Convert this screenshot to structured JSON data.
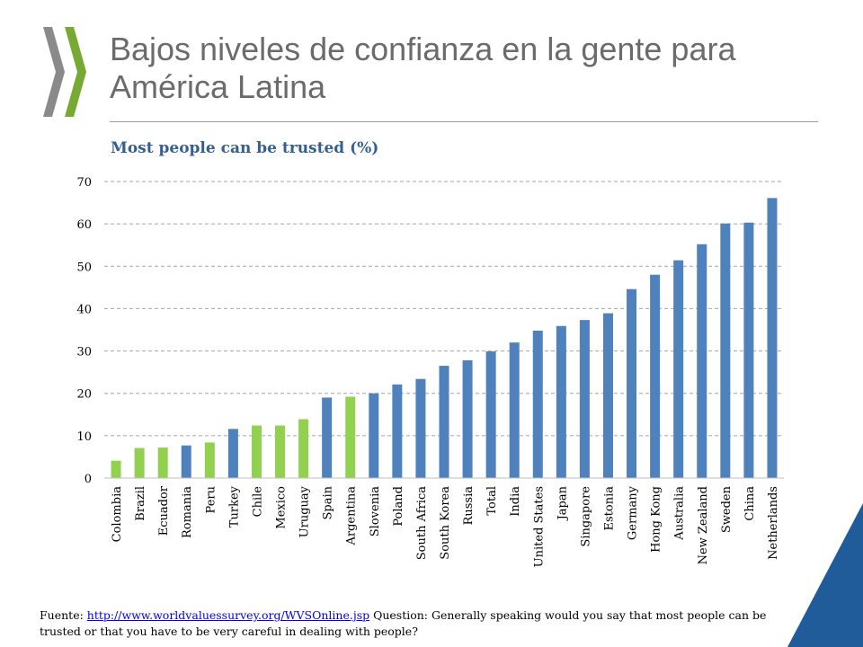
{
  "slide": {
    "title": "Bajos niveles de confianza en la gente para América Latina"
  },
  "colors": {
    "bar_default": "#4f81bd",
    "bar_latam": "#92d050",
    "title_text": "#6b6b6b",
    "chart_title": "#365f91",
    "corner": "#1f5c99",
    "logo": "#78aa33"
  },
  "chart_data": {
    "type": "bar",
    "title": "Most people can be trusted (%)",
    "xlabel": "",
    "ylabel": "",
    "ylim": [
      0,
      70
    ],
    "yticks": [
      0,
      10,
      20,
      30,
      40,
      50,
      60,
      70
    ],
    "grid": true,
    "legend": "none",
    "categories": [
      "Colombia",
      "Brazil",
      "Ecuador",
      "Romania",
      "Peru",
      "Turkey",
      "Chile",
      "Mexico",
      "Uruguay",
      "Spain",
      "Argentina",
      "Slovenia",
      "Poland",
      "South Africa",
      "South Korea",
      "Russia",
      "Total",
      "India",
      "United States",
      "Japan",
      "Singapore",
      "Estonia",
      "Germany",
      "Hong Kong",
      "Australia",
      "New Zealand",
      "Sweden",
      "China",
      "Netherlands"
    ],
    "values": [
      4.1,
      7.1,
      7.2,
      7.7,
      8.4,
      11.6,
      12.4,
      12.4,
      13.9,
      19.0,
      19.2,
      20.0,
      22.1,
      23.4,
      26.5,
      27.8,
      29.9,
      32.0,
      34.8,
      35.9,
      37.3,
      38.9,
      44.6,
      48.0,
      51.4,
      55.2,
      60.1,
      60.3,
      66.1
    ],
    "highlighted": [
      "Colombia",
      "Brazil",
      "Ecuador",
      "Peru",
      "Chile",
      "Mexico",
      "Uruguay",
      "Argentina"
    ]
  },
  "footnote": {
    "prefix": "Fuente: ",
    "link": "http://www.worldvaluessurvey.org/WVSOnline.jsp",
    "text": " Question: Generally speaking would you say that most people can be trusted or that you have to be very careful in dealing with people?"
  }
}
